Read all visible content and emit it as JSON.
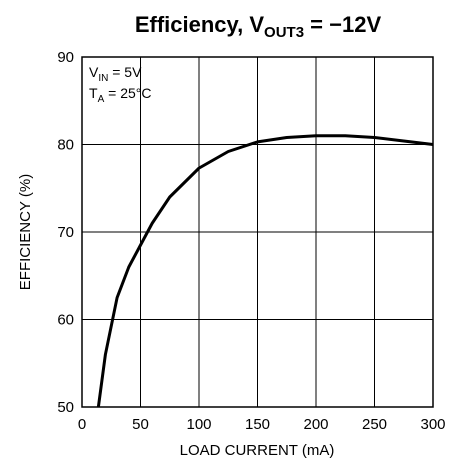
{
  "chart_data": {
    "type": "line",
    "title": [
      "Efficiency, V",
      "OUT3",
      " = −12V"
    ],
    "annotations": [
      [
        "V",
        "IN",
        " = 5V"
      ],
      [
        "T",
        "A",
        " = 25°C"
      ]
    ],
    "xlabel": "LOAD CURRENT (mA)",
    "ylabel": "EFFICIENCY (%)",
    "x": [
      14,
      20,
      30,
      40,
      50,
      60,
      75,
      100,
      125,
      150,
      175,
      200,
      225,
      250,
      275,
      300
    ],
    "series": [
      {
        "color": "#000000",
        "values": [
          50,
          56,
          62.5,
          66,
          68.5,
          71,
          74,
          77.3,
          79.2,
          80.3,
          80.8,
          81,
          81,
          80.8,
          80.4,
          80
        ]
      }
    ],
    "xlim": [
      0,
      300
    ],
    "xticks": [
      0,
      50,
      100,
      150,
      200,
      250,
      300
    ],
    "ylim": [
      50,
      90
    ],
    "yticks": [
      50,
      60,
      70,
      80,
      90
    ],
    "grid": true
  }
}
